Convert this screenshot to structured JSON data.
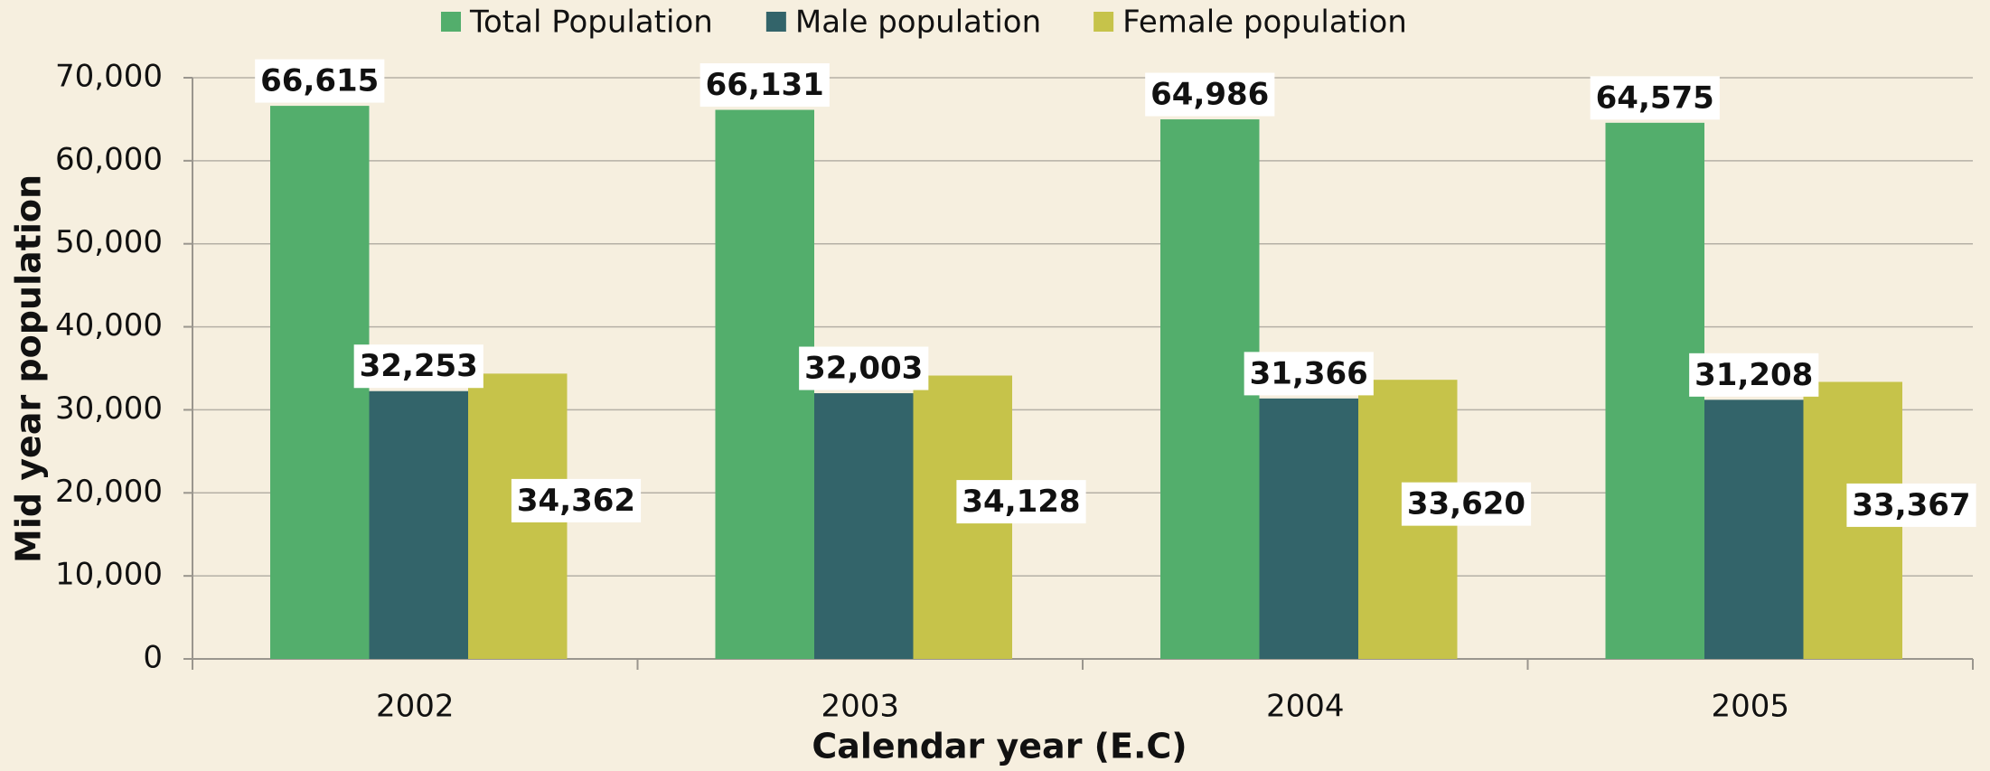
{
  "chart_data": {
    "type": "bar",
    "x_label": "Calendar year (E.C)",
    "y_label": "Mid year population",
    "categories": [
      "2002",
      "2003",
      "2004",
      "2005"
    ],
    "series": [
      {
        "name": "Total Population",
        "color": "#53ae6c",
        "values": [
          66615,
          66131,
          64986,
          64575
        ],
        "value_labels": [
          "66,615",
          "66,131",
          "64,986",
          "64,575"
        ]
      },
      {
        "name": "Male population",
        "color": "#33646a",
        "values": [
          32253,
          32003,
          31366,
          31208
        ],
        "value_labels": [
          "32,253",
          "32,003",
          "31,366",
          "31,208"
        ]
      },
      {
        "name": "Female population",
        "color": "#c6c34a",
        "values": [
          34362,
          34128,
          33620,
          33367
        ],
        "value_labels": [
          "34,362",
          "34,128",
          "33,620",
          "33,367"
        ]
      }
    ],
    "ylim": [
      0,
      70000
    ],
    "yticks": [
      0,
      {
        "value": 10000,
        "label": "10,000"
      },
      {
        "value": 20000,
        "label": "20,000"
      },
      {
        "value": 30000,
        "label": "30,000"
      },
      {
        "value": 40000,
        "label": "40,000"
      },
      {
        "value": 50000,
        "label": "50,000"
      },
      {
        "value": 60000,
        "label": "60,000"
      },
      {
        "value": 70000,
        "label": "70,000"
      }
    ],
    "grid": true,
    "legend": "top"
  }
}
